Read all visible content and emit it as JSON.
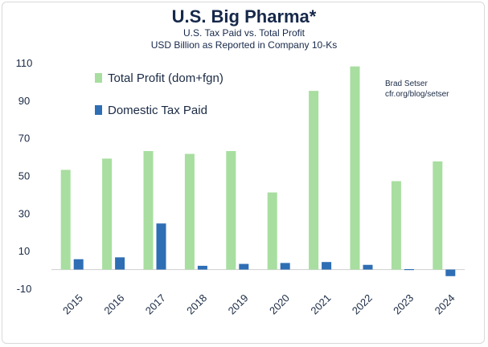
{
  "chart_data": {
    "type": "bar",
    "title": "U.S. Big Pharma*",
    "subtitle_lines": [
      "U.S. Tax Paid vs. Total Profit",
      "USD Billion as Reported in Company 10-Ks"
    ],
    "categories": [
      "2015",
      "2016",
      "2017",
      "2018",
      "2019",
      "2020",
      "2021",
      "2022",
      "2023",
      "2024"
    ],
    "series": [
      {
        "name": "Total Profit (dom+fgn)",
        "color": "#a8dea0",
        "values": [
          53,
          59,
          63,
          61.5,
          63,
          41,
          95,
          108,
          47,
          57.5
        ]
      },
      {
        "name": "Domestic Tax Paid",
        "color": "#2e6eb4",
        "values": [
          5.5,
          6.5,
          24.5,
          2,
          3,
          3.5,
          4,
          2.5,
          0.3,
          -3.5
        ]
      }
    ],
    "yticks": [
      110,
      90,
      70,
      50,
      30,
      10,
      -10
    ],
    "ylim": [
      -10,
      110
    ],
    "legend_position": "top-left",
    "grid": false,
    "credit": [
      "Brad Setser",
      "cfr.org/blog/setser"
    ]
  }
}
